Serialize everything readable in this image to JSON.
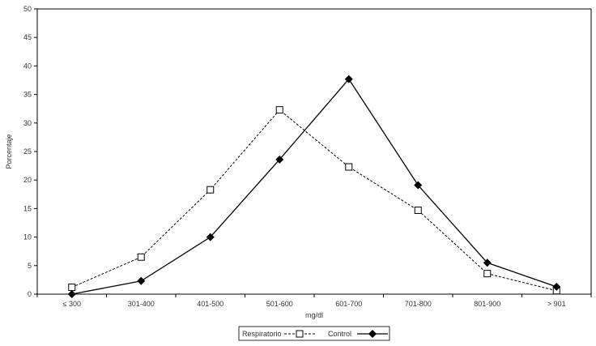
{
  "chart_data": {
    "type": "line",
    "title": "",
    "xlabel": "mg/dl",
    "ylabel": "Porcentaje",
    "ylim": [
      0,
      50
    ],
    "yticks": [
      0,
      5,
      10,
      15,
      20,
      25,
      30,
      35,
      40,
      45,
      50
    ],
    "grid": false,
    "legend_position": "bottom",
    "categories": [
      "≤ 300",
      "301-400",
      "401-500",
      "501-600",
      "601-700",
      "701-800",
      "801-900",
      "> 901"
    ],
    "series": [
      {
        "name": "Respiratorio",
        "values": [
          1.2,
          6.5,
          18.3,
          32.3,
          22.3,
          14.7,
          3.6,
          0.6
        ],
        "line_style": "dashed",
        "marker": "open-square",
        "color": "#000000"
      },
      {
        "name": "Control",
        "values": [
          0.0,
          2.3,
          10.0,
          23.6,
          37.7,
          19.1,
          5.5,
          1.3
        ],
        "line_style": "solid",
        "marker": "filled-diamond",
        "color": "#000000"
      }
    ]
  }
}
